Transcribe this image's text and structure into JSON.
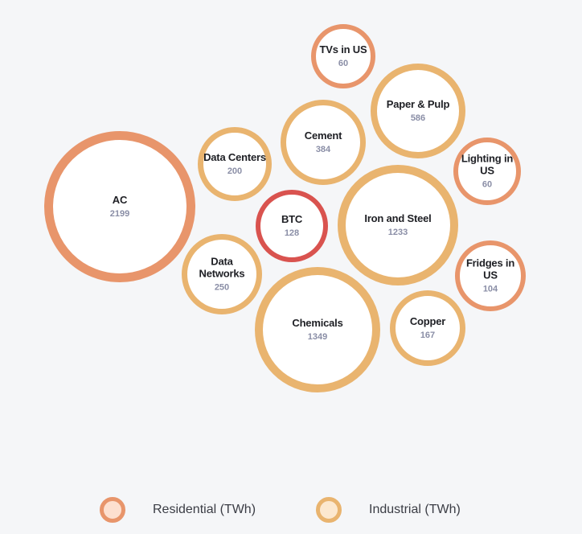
{
  "colors": {
    "residential": "#e8956b",
    "industrial": "#e9b46f",
    "btc": "#d9534f",
    "residential_fill": "#fde0d0",
    "industrial_fill": "#fce8cf",
    "bubble_fill": "#ffffff",
    "background": "#f5f6f8"
  },
  "chart_data": {
    "type": "bubble",
    "unit": "TWh",
    "series": [
      {
        "name": "AC",
        "value": 2199,
        "category": "residential"
      },
      {
        "name": "TVs in US",
        "value": 60,
        "category": "residential"
      },
      {
        "name": "Paper & Pulp",
        "value": 586,
        "category": "industrial"
      },
      {
        "name": "Cement",
        "value": 384,
        "category": "industrial"
      },
      {
        "name": "Data Centers",
        "value": 200,
        "category": "industrial"
      },
      {
        "name": "Lighting in US",
        "value": 60,
        "category": "residential"
      },
      {
        "name": "BTC",
        "value": 128,
        "category": "btc"
      },
      {
        "name": "Iron and Steel",
        "value": 1233,
        "category": "industrial"
      },
      {
        "name": "Data Networks",
        "value": 250,
        "category": "industrial"
      },
      {
        "name": "Fridges in US",
        "value": 104,
        "category": "residential"
      },
      {
        "name": "Chemicals",
        "value": 1349,
        "category": "industrial"
      },
      {
        "name": "Copper",
        "value": 167,
        "category": "industrial"
      }
    ],
    "legend": [
      {
        "label": "Residential (TWh)",
        "category": "residential"
      },
      {
        "label": "Industrial (TWh)",
        "category": "industrial"
      }
    ]
  }
}
